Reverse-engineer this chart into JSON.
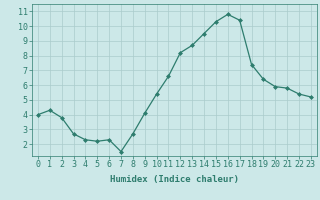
{
  "x": [
    0,
    1,
    2,
    3,
    4,
    5,
    6,
    7,
    8,
    9,
    10,
    11,
    12,
    13,
    14,
    15,
    16,
    17,
    18,
    19,
    20,
    21,
    22,
    23
  ],
  "y": [
    4.0,
    4.3,
    3.8,
    2.7,
    2.3,
    2.2,
    2.3,
    1.5,
    2.7,
    4.1,
    5.4,
    6.6,
    8.2,
    8.7,
    9.5,
    10.3,
    10.8,
    10.4,
    7.4,
    6.4,
    5.9,
    5.8,
    5.4,
    5.2
  ],
  "line_color": "#2e7d6e",
  "marker": "D",
  "marker_size": 2.0,
  "bg_color": "#cce8e8",
  "grid_color": "#aacccc",
  "xlabel": "Humidex (Indice chaleur)",
  "xlim": [
    -0.5,
    23.5
  ],
  "ylim": [
    1.2,
    11.5
  ],
  "yticks": [
    2,
    3,
    4,
    5,
    6,
    7,
    8,
    9,
    10,
    11
  ],
  "xticks": [
    0,
    1,
    2,
    3,
    4,
    5,
    6,
    7,
    8,
    9,
    10,
    11,
    12,
    13,
    14,
    15,
    16,
    17,
    18,
    19,
    20,
    21,
    22,
    23
  ],
  "label_fontsize": 6.5,
  "tick_fontsize": 6.0,
  "linewidth": 0.9
}
